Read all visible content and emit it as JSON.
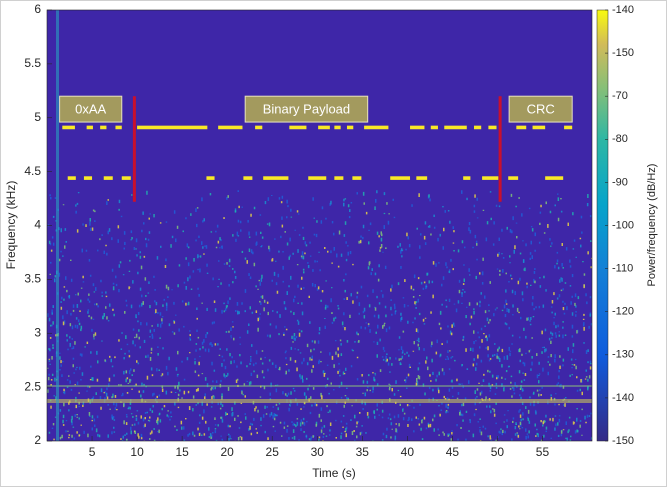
{
  "chart_data": {
    "type": "spectrogram",
    "xlabel": "Time (s)",
    "ylabel": "Frequency (kHz)",
    "colorbar_label": "Power/frequency (dB/Hz)",
    "colorbar_labels": [
      "-140",
      "-150",
      "-70",
      "-80",
      "-90",
      "-100",
      "-110",
      "-120",
      "-130",
      "-140",
      "-150"
    ],
    "xlim": [
      0,
      60.5
    ],
    "xticks": [
      5,
      10,
      15,
      20,
      25,
      30,
      35,
      40,
      45,
      50,
      55
    ],
    "ylim": [
      2,
      6
    ],
    "yticks": [
      2,
      2.5,
      3,
      3.5,
      4,
      4.5,
      5,
      5.5,
      6
    ],
    "background_color": "#3e26a8",
    "tone_color": "#f9e926",
    "tones": [
      {
        "frequency": 4.91,
        "segments": [
          [
            1.7,
            3.1
          ],
          [
            4.4,
            5.1
          ],
          [
            5.9,
            6.6
          ],
          [
            7.6,
            8.3
          ],
          [
            10.0,
            17.8
          ],
          [
            19.0,
            21.7
          ],
          [
            23.1,
            23.9
          ],
          [
            26.9,
            28.8
          ],
          [
            30.1,
            31.4
          ],
          [
            31.9,
            32.6
          ],
          [
            33.3,
            34.0
          ],
          [
            35.2,
            37.9
          ],
          [
            40.3,
            41.9
          ],
          [
            42.6,
            43.4
          ],
          [
            44.1,
            46.6
          ],
          [
            47.4,
            48.2
          ],
          [
            49.0,
            49.9
          ],
          [
            52.1,
            53.2
          ],
          [
            53.9,
            55.3
          ],
          [
            57.4,
            58.3
          ]
        ]
      },
      {
        "frequency": 4.44,
        "segments": [
          [
            2.3,
            3.2
          ],
          [
            4.1,
            5.0
          ],
          [
            6.3,
            7.3
          ],
          [
            8.3,
            9.3
          ],
          [
            17.7,
            18.6
          ],
          [
            21.8,
            22.8
          ],
          [
            24.0,
            26.8
          ],
          [
            29.0,
            31.0
          ],
          [
            31.9,
            32.9
          ],
          [
            33.9,
            34.9
          ],
          [
            38.1,
            40.3
          ],
          [
            41.0,
            42.2
          ],
          [
            46.2,
            47.0
          ],
          [
            48.3,
            50.1
          ],
          [
            51.2,
            52.3
          ],
          [
            55.3,
            57.3
          ]
        ]
      }
    ],
    "annotations": [
      {
        "text": "0xAA",
        "x": [
          1.4,
          8.3
        ],
        "y": [
          4.96,
          5.2
        ]
      },
      {
        "text": "Binary Payload",
        "x": [
          22.0,
          35.6
        ],
        "y": [
          4.96,
          5.2
        ]
      },
      {
        "text": "CRC",
        "x": [
          51.3,
          58.3
        ],
        "y": [
          4.96,
          5.2
        ]
      }
    ],
    "markers": [
      {
        "x": 9.7,
        "y": [
          4.22,
          5.2
        ],
        "color": "#c8102e"
      },
      {
        "x": 50.3,
        "y": [
          4.22,
          5.2
        ],
        "color": "#c8102e"
      }
    ]
  }
}
